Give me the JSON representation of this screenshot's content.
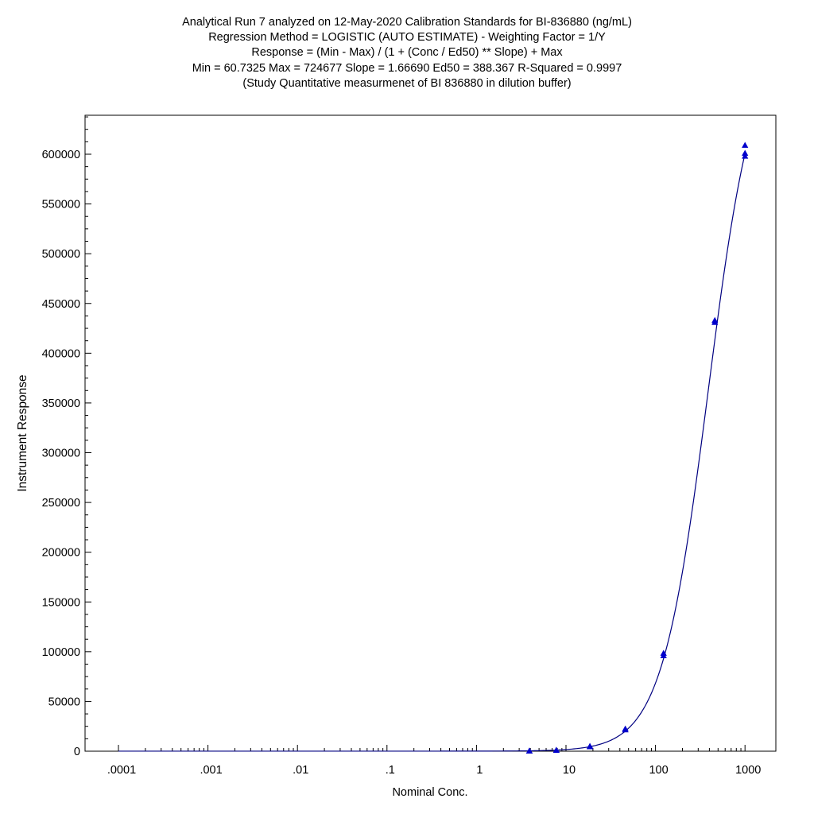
{
  "chart_data": {
    "type": "scatter",
    "title_lines": [
      "Analytical Run 7 analyzed on 12-May-2020 Calibration Standards for BI-836880 (ng/mL)",
      "Regression Method = LOGISTIC (AUTO ESTIMATE) - Weighting Factor = 1/Y",
      "Response = (Min - Max) / (1 + (Conc / Ed50) ** Slope) + Max",
      "Min = 60.7325 Max = 724677 Slope = 1.66690 Ed50 = 388.367 R-Squared = 0.9997",
      "(Study Quantitative measurmenet of BI 836880 in dilution buffer)"
    ],
    "xlabel": "Nominal Conc.",
    "ylabel": "Instrument Response",
    "x_scale": "log",
    "xlim": [
      5e-05,
      1500
    ],
    "ylim": [
      0,
      640000
    ],
    "x_ticks": [
      0.0001,
      0.001,
      0.01,
      0.1,
      1,
      10,
      100,
      1000
    ],
    "x_tick_labels": [
      ".0001",
      ".001",
      ".01",
      ".1",
      "1",
      "10",
      "100",
      "1000"
    ],
    "y_ticks": [
      0,
      50000,
      100000,
      150000,
      200000,
      250000,
      300000,
      350000,
      400000,
      450000,
      500000,
      550000,
      600000
    ],
    "y_tick_labels": [
      "0",
      "50000",
      "100000",
      "150000",
      "200000",
      "250000",
      "300000",
      "350000",
      "400000",
      "450000",
      "500000",
      "550000",
      "600000"
    ],
    "grid": false,
    "fit": {
      "model": "logistic",
      "min": 60.7325,
      "max": 724677,
      "slope": 1.6669,
      "ed50": 388.367,
      "x_from": 0.0001,
      "x_to": 1000
    },
    "series": [
      {
        "marker": "triangle",
        "color": "#0000cc",
        "points": [
          {
            "x": 3.9,
            "y": 200
          },
          {
            "x": 3.9,
            "y": 300
          },
          {
            "x": 7.8,
            "y": 900
          },
          {
            "x": 7.8,
            "y": 1100
          },
          {
            "x": 18.5,
            "y": 4500
          },
          {
            "x": 18.5,
            "y": 5000
          },
          {
            "x": 46,
            "y": 21500
          },
          {
            "x": 46,
            "y": 22500
          },
          {
            "x": 123,
            "y": 96000
          },
          {
            "x": 123,
            "y": 98500
          },
          {
            "x": 460,
            "y": 431000
          },
          {
            "x": 460,
            "y": 433000
          },
          {
            "x": 1000,
            "y": 598000
          },
          {
            "x": 1000,
            "y": 601000
          },
          {
            "x": 1000,
            "y": 609000
          }
        ]
      }
    ],
    "colors": {
      "curve": "#000080",
      "marker": "#0000cc",
      "axis": "#000000"
    }
  }
}
